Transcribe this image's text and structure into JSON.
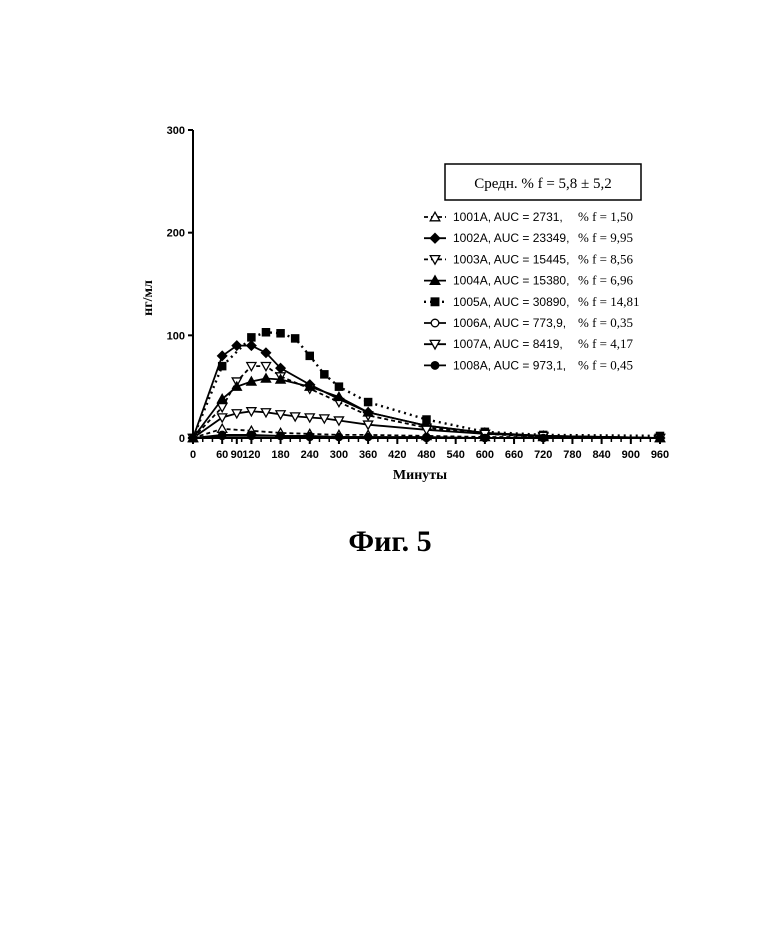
{
  "figure_caption": "Фиг. 5",
  "chart_data": {
    "type": "line",
    "xlabel": "Минуты",
    "ylabel": "нг/мл",
    "xlim": [
      0,
      960
    ],
    "ylim": [
      0,
      300
    ],
    "x_ticks": [
      0,
      60,
      90,
      120,
      180,
      240,
      300,
      360,
      420,
      480,
      540,
      600,
      660,
      720,
      780,
      840,
      900,
      960
    ],
    "y_ticks": [
      0,
      100,
      200,
      300
    ],
    "summary_box": "Средн. % f = 5,8 ± 5,2",
    "legend_position": "top-right",
    "grid": false,
    "series": [
      {
        "name": "1001A, AUC =   2731, % f = 1,50",
        "label": "1001A, AUC =   2731,",
        "f": "% f = 1,50",
        "marker": "triangle-up-open",
        "dash": "dashed",
        "x": [
          0,
          60,
          120,
          180,
          240,
          300,
          360,
          480,
          600,
          720,
          960
        ],
        "y": [
          0,
          9,
          7,
          5,
          4,
          3,
          3,
          2,
          1,
          1,
          0
        ]
      },
      {
        "name": "1002A, AUC = 23349, % f = 9,95",
        "label": "1002A, AUC = 23349,",
        "f": "% f = 9,95",
        "marker": "diamond",
        "dash": "solid",
        "x": [
          0,
          60,
          90,
          120,
          150,
          180,
          240,
          300,
          360,
          480,
          600,
          720,
          960
        ],
        "y": [
          0,
          80,
          90,
          90,
          83,
          68,
          52,
          38,
          25,
          12,
          5,
          2,
          0
        ]
      },
      {
        "name": "1003A, AUC = 15445, % f = 8,56",
        "label": "1003A, AUC = 15445,",
        "f": "% f = 8,56",
        "marker": "triangle-down-open",
        "dash": "dashed",
        "x": [
          0,
          60,
          90,
          120,
          150,
          180,
          240,
          300,
          360,
          480,
          600,
          720,
          960
        ],
        "y": [
          0,
          30,
          55,
          70,
          70,
          60,
          48,
          35,
          22,
          10,
          4,
          1,
          0
        ]
      },
      {
        "name": "1004A, AUC = 15380, % f = 6,96",
        "label": "1004A, AUC = 15380,",
        "f": "% f = 6,96",
        "marker": "triangle-up",
        "dash": "solid",
        "x": [
          0,
          60,
          90,
          120,
          150,
          180,
          240,
          300,
          360,
          480,
          600,
          720,
          960
        ],
        "y": [
          0,
          38,
          50,
          55,
          58,
          57,
          50,
          40,
          25,
          12,
          5,
          2,
          0
        ]
      },
      {
        "name": "1005A, AUC = 30890,  % f = 14,81",
        "label": "1005A, AUC = 30890,",
        "f": "% f = 14,81",
        "marker": "square",
        "dash": "dotted",
        "x": [
          0,
          60,
          120,
          150,
          180,
          210,
          240,
          270,
          300,
          360,
          480,
          600,
          720,
          960
        ],
        "y": [
          0,
          70,
          98,
          103,
          102,
          97,
          80,
          62,
          50,
          35,
          18,
          6,
          3,
          2
        ]
      },
      {
        "name": "1006A, AUC =   773,9, % f = 0,35",
        "label": "1006A, AUC =   773,9,",
        "f": "% f = 0,35",
        "marker": "circle-open",
        "dash": "solid",
        "x": [
          0,
          60,
          120,
          180,
          240,
          300,
          360,
          480,
          600,
          720,
          960
        ],
        "y": [
          0,
          3,
          3,
          2,
          2,
          1,
          1,
          1,
          0,
          0,
          0
        ]
      },
      {
        "name": "1007A, AUC =   8419, % f = 4,17",
        "label": "1007A, AUC =   8419,",
        "f": "% f = 4,17",
        "marker": "triangle-down-open",
        "dash": "solid",
        "x": [
          0,
          60,
          90,
          120,
          150,
          180,
          210,
          240,
          270,
          300,
          360,
          480,
          600,
          720,
          960
        ],
        "y": [
          0,
          20,
          24,
          26,
          25,
          23,
          21,
          20,
          19,
          17,
          13,
          8,
          4,
          2,
          0
        ]
      },
      {
        "name": "1008A, AUC =   973,1, % f = 0,45",
        "label": "1008A, AUC =   973,1,",
        "f": "% f = 0,45",
        "marker": "circle",
        "dash": "solid",
        "x": [
          0,
          60,
          120,
          180,
          240,
          300,
          360,
          480,
          600,
          720,
          960
        ],
        "y": [
          0,
          2,
          2,
          2,
          1,
          1,
          1,
          0,
          0,
          0,
          0
        ]
      }
    ]
  }
}
